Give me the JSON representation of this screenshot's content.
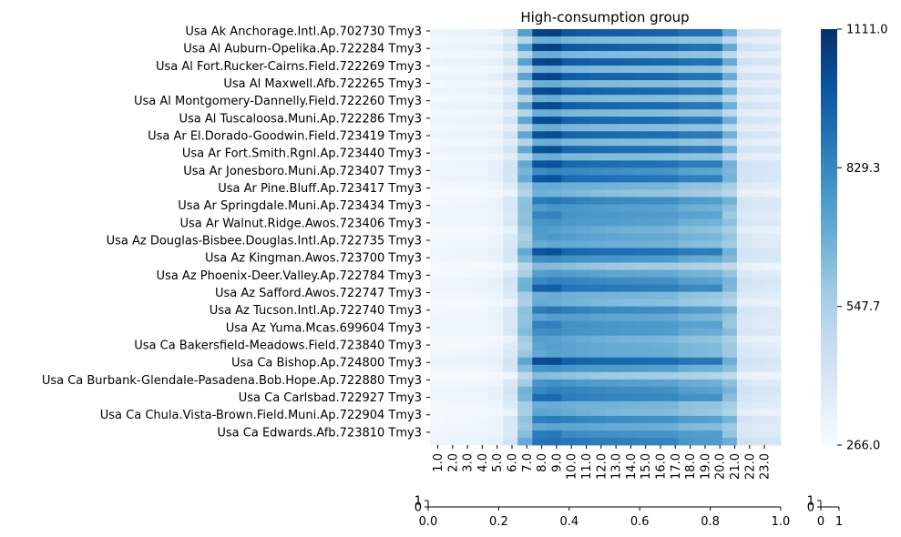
{
  "chart_data": [
    {
      "type": "heatmap",
      "title": "High-consumption group",
      "xlabel": "",
      "ylabel": "",
      "x_tick_labels": [
        "1.0",
        "2.0",
        "3.0",
        "4.0",
        "5.0",
        "6.0",
        "7.0",
        "8.0",
        "9.0",
        "10.0",
        "11.0",
        "12.0",
        "13.0",
        "14.0",
        "15.0",
        "16.0",
        "17.0",
        "18.0",
        "19.0",
        "20.0",
        "21.0",
        "22.0",
        "23.0"
      ],
      "y_tick_labels": [
        "Usa Ak Anchorage.Intl.Ap.702730 Tmy3",
        "Usa Al Auburn-Opelika.Ap.722284 Tmy3",
        "Usa Al Fort.Rucker-Cairns.Field.722269 Tmy3",
        "Usa Al Maxwell.Afb.722265 Tmy3",
        "Usa Al Montgomery-Dannelly.Field.722260 Tmy3",
        "Usa Al Tuscaloosa.Muni.Ap.722286 Tmy3",
        "Usa Ar El.Dorado-Goodwin.Field.723419 Tmy3",
        "Usa Ar Fort.Smith.Rgnl.Ap.723440 Tmy3",
        "Usa Ar Jonesboro.Muni.Ap.723407 Tmy3",
        "Usa Ar Pine.Bluff.Ap.723417 Tmy3",
        "Usa Ar Springdale.Muni.Ap.723434 Tmy3",
        "Usa Ar Walnut.Ridge.Awos.723406 Tmy3",
        "Usa Az Douglas-Bisbee.Douglas.Intl.Ap.722735 Tmy3",
        "Usa Az Kingman.Awos.723700 Tmy3",
        "Usa Az Phoenix-Deer.Valley.Ap.722784 Tmy3",
        "Usa Az Safford.Awos.722747 Tmy3",
        "Usa Az Tucson.Intl.Ap.722740 Tmy3",
        "Usa Az Yuma.Mcas.699604 Tmy3",
        "Usa Ca Bakersfield-Meadows.Field.723840 Tmy3",
        "Usa Ca Bishop.Ap.724800 Tmy3",
        "Usa Ca Burbank-Glendale-Pasadena.Bob.Hope.Ap.722880 Tmy3",
        "Usa Ca Carlsbad.722927 Tmy3",
        "Usa Ca Chula.Vista-Brown.Field.Muni.Ap.722904 Tmy3",
        "Usa Ca Edwards.Afb.723810 Tmy3"
      ],
      "hour_profiles": [
        {
          "hours": [
            1,
            2,
            3,
            4,
            5,
            6,
            7,
            8,
            9,
            10,
            11,
            12,
            13,
            14,
            15,
            16,
            17,
            18,
            19,
            20,
            21,
            22,
            23,
            24
          ],
          "values": [
            310,
            315,
            318,
            322,
            340,
            430,
            760,
            1080,
            1090,
            1010,
            1000,
            990,
            985,
            980,
            975,
            970,
            965,
            930,
            925,
            930,
            720,
            440,
            420,
            410
          ]
        },
        {
          "hours": [
            1,
            2,
            3,
            4,
            5,
            6,
            7,
            8,
            9,
            10,
            11,
            12,
            13,
            14,
            15,
            16,
            17,
            18,
            19,
            20,
            21,
            22,
            23,
            24
          ],
          "values": [
            300,
            302,
            305,
            310,
            325,
            420,
            690,
            870,
            880,
            860,
            850,
            845,
            840,
            835,
            830,
            825,
            820,
            760,
            750,
            745,
            680,
            430,
            410,
            405
          ]
        },
        {
          "hours": [
            1,
            2,
            3,
            4,
            5,
            6,
            7,
            8,
            9,
            10,
            11,
            12,
            13,
            14,
            15,
            16,
            17,
            18,
            19,
            20,
            21,
            22,
            23,
            24
          ],
          "values": [
            278,
            280,
            282,
            285,
            295,
            330,
            600,
            790,
            780,
            760,
            740,
            725,
            715,
            705,
            700,
            700,
            690,
            660,
            650,
            640,
            580,
            360,
            340,
            330
          ]
        },
        {
          "hours": [
            1,
            2,
            3,
            4,
            5,
            6,
            7,
            8,
            9,
            10,
            11,
            12,
            13,
            14,
            15,
            16,
            17,
            18,
            19,
            20,
            21,
            22,
            23,
            24
          ],
          "values": [
            290,
            292,
            295,
            298,
            320,
            410,
            640,
            900,
            920,
            900,
            880,
            870,
            860,
            855,
            850,
            845,
            840,
            800,
            790,
            780,
            700,
            430,
            400,
            395
          ]
        },
        {
          "hours": [
            1,
            2,
            3,
            4,
            5,
            6,
            7,
            8,
            9,
            10,
            11,
            12,
            13,
            14,
            15,
            16,
            17,
            18,
            19,
            20,
            21,
            22,
            23,
            24
          ],
          "values": [
            305,
            308,
            310,
            315,
            335,
            430,
            700,
            860,
            890,
            880,
            870,
            860,
            850,
            845,
            840,
            835,
            830,
            780,
            770,
            760,
            690,
            440,
            415,
            410
          ]
        }
      ],
      "colorbar": {
        "min": 266.0,
        "max": 1111.0,
        "ticks": [
          "1111.0",
          "829.3",
          "547.7",
          "266.0"
        ],
        "colormap": "Blues"
      },
      "grid": false
    },
    {
      "type": "line",
      "x_tick_labels": [
        "0.0",
        "0.2",
        "0.4",
        "0.6",
        "0.8",
        "1.0"
      ],
      "y_tick_labels": [
        "0",
        "1"
      ],
      "xlim": [
        0,
        1
      ],
      "ylim": [
        0,
        1
      ]
    },
    {
      "type": "line",
      "x_tick_labels": [
        "0",
        "1"
      ],
      "y_tick_labels": [
        "0",
        "1"
      ],
      "xlim": [
        0,
        1
      ],
      "ylim": [
        0,
        1
      ]
    }
  ]
}
